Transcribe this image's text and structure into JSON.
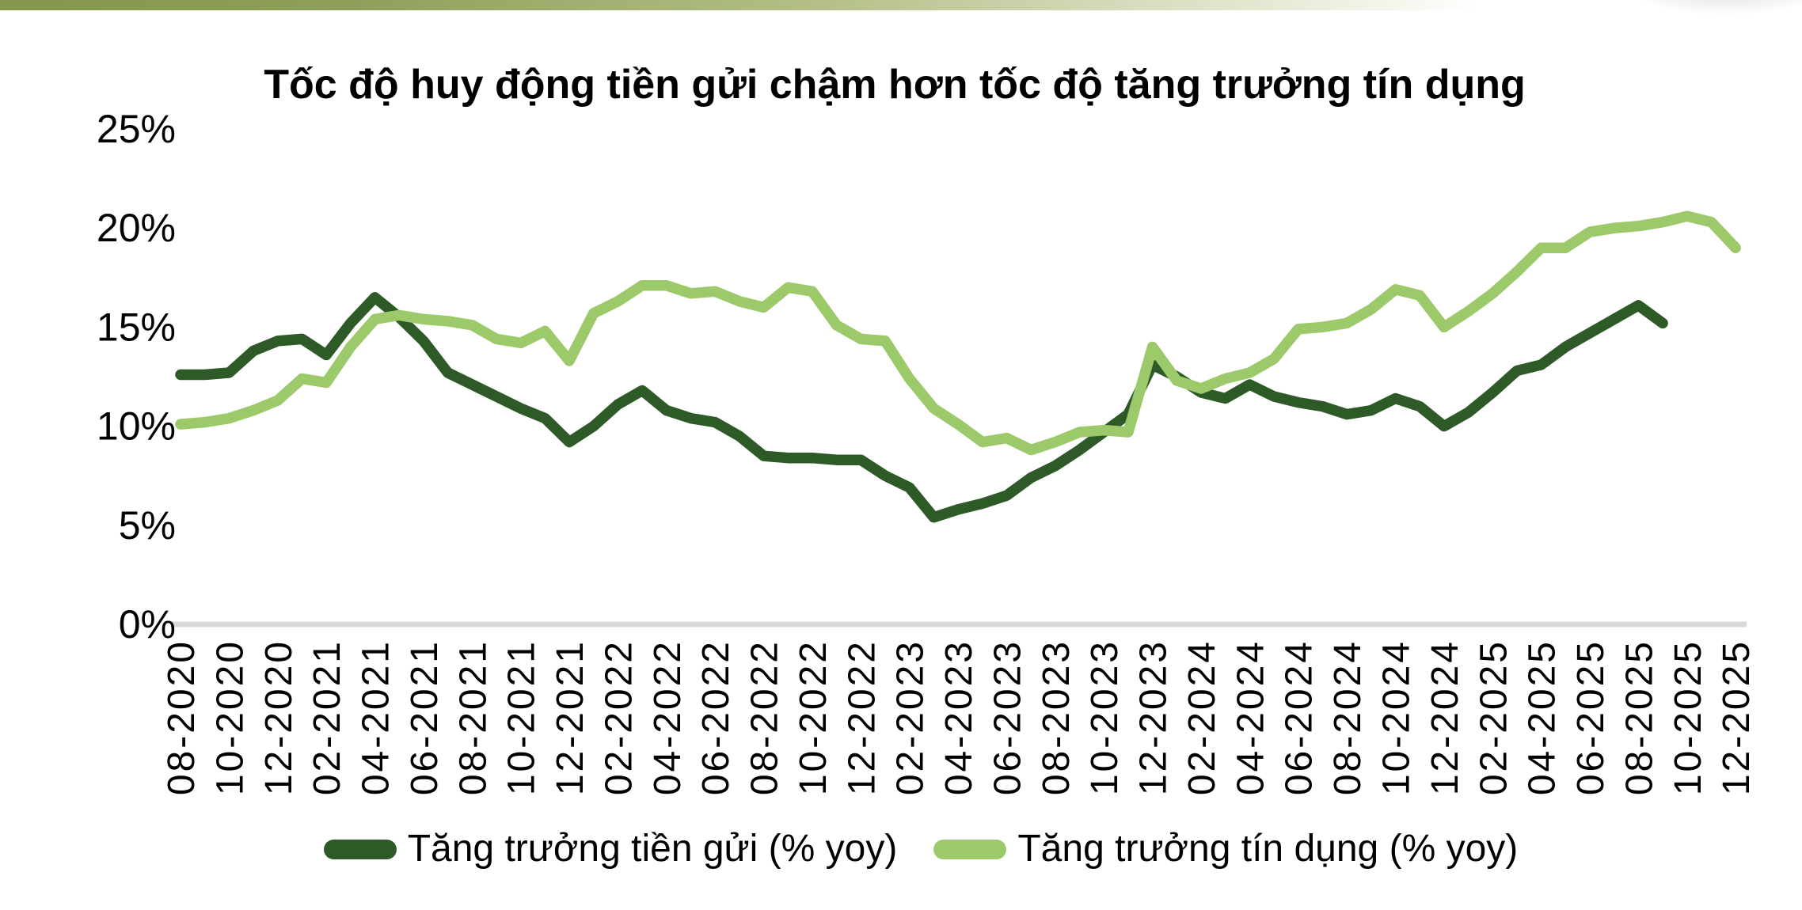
{
  "chart_data": {
    "type": "line",
    "title": "Tốc độ huy động tiền gửi chậm hơn tốc độ tăng trưởng tín dụng",
    "xlabel": "",
    "ylabel": "",
    "ylim": [
      0,
      25
    ],
    "grid": false,
    "legend_position": "bottom",
    "x_start": "08-2020",
    "x_frequency": "monthly",
    "x_tick_every": 2,
    "x_tick_labels": [
      "08-2020",
      "10-2020",
      "12-2020",
      "02-2021",
      "04-2021",
      "06-2021",
      "08-2021",
      "10-2021",
      "12-2021",
      "02-2022",
      "04-2022",
      "06-2022",
      "08-2022",
      "10-2022",
      "12-2022",
      "02-2023",
      "04-2023",
      "06-2023",
      "08-2023",
      "10-2023",
      "12-2023",
      "02-2024",
      "04-2024",
      "06-2024",
      "08-2024",
      "10-2024",
      "12-2024",
      "02-2025",
      "04-2025",
      "06-2025",
      "08-2025",
      "10-2025",
      "12-2025"
    ],
    "yticks": [
      {
        "value": 0,
        "label": "0%"
      },
      {
        "value": 5,
        "label": "5%"
      },
      {
        "value": 10,
        "label": "10%"
      },
      {
        "value": 15,
        "label": "15%"
      },
      {
        "value": 20,
        "label": "20%"
      },
      {
        "value": 25,
        "label": "25%"
      }
    ],
    "axis_color": "#d9d9d9",
    "series": [
      {
        "name": "Tăng trưởng tiền gửi (% yoy)",
        "color": "#2d5a27",
        "values": [
          12.6,
          12.6,
          12.7,
          13.8,
          14.3,
          14.4,
          13.6,
          15.2,
          16.5,
          15.5,
          14.3,
          12.7,
          12.1,
          11.5,
          10.9,
          10.4,
          9.2,
          10.0,
          11.1,
          11.8,
          10.8,
          10.4,
          10.2,
          9.5,
          8.5,
          8.4,
          8.4,
          8.3,
          8.3,
          7.5,
          6.9,
          5.4,
          5.8,
          6.1,
          6.5,
          7.4,
          8.0,
          8.8,
          9.7,
          10.6,
          13.1,
          12.5,
          11.7,
          11.4,
          12.1,
          11.5,
          11.2,
          11.0,
          10.6,
          10.8,
          11.4,
          11.0,
          10.0,
          10.7,
          11.7,
          12.8,
          13.1,
          14.0,
          14.7,
          15.4,
          16.1,
          15.2
        ]
      },
      {
        "name": "Tăng trưởng tín dụng (% yoy)",
        "color": "#9cc969",
        "values": [
          10.1,
          10.2,
          10.4,
          10.8,
          11.3,
          12.4,
          12.2,
          14.0,
          15.4,
          15.6,
          15.4,
          15.3,
          15.1,
          14.4,
          14.2,
          14.8,
          13.3,
          15.7,
          16.3,
          17.1,
          17.1,
          16.7,
          16.8,
          16.3,
          16.0,
          17.0,
          16.8,
          15.1,
          14.4,
          14.3,
          12.4,
          10.9,
          10.1,
          9.2,
          9.4,
          8.8,
          9.2,
          9.7,
          9.8,
          9.7,
          14.0,
          12.3,
          11.9,
          12.4,
          12.7,
          13.4,
          14.9,
          15.0,
          15.2,
          15.9,
          16.9,
          16.6,
          15.0,
          15.8,
          16.7,
          17.8,
          19.0,
          19.0,
          19.8,
          20.0,
          20.1,
          20.3,
          20.6,
          20.3,
          19.0
        ]
      }
    ]
  },
  "decor": {
    "top_bar_left_color": "#85974d",
    "top_bar_right_color": "#ffffff"
  }
}
